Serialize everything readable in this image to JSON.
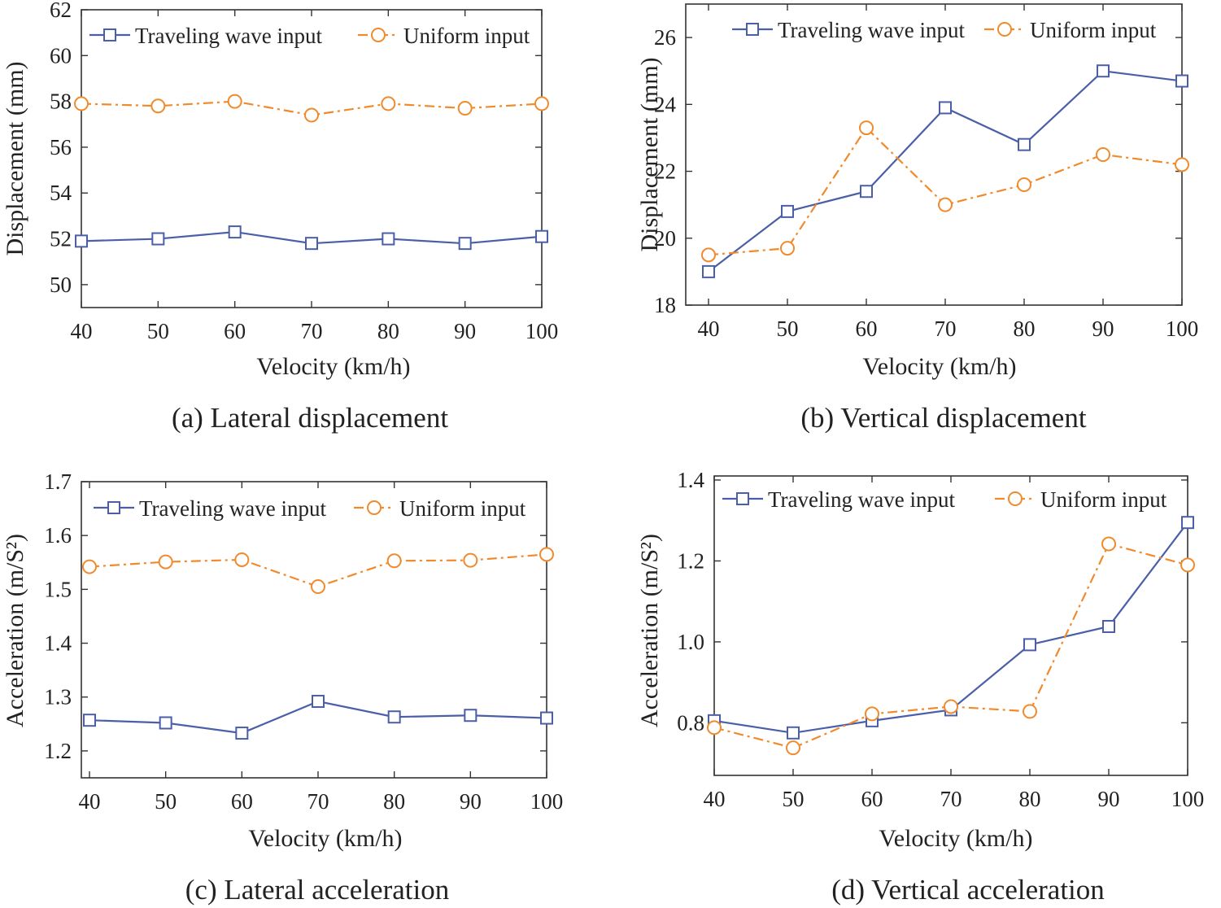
{
  "colors": {
    "traveling": "#4a5fa8",
    "uniform": "#f08a2c",
    "axis": "#333333"
  },
  "chart_data": [
    {
      "type": "line",
      "caption": "(a) Lateral displacement",
      "xlabel": "Velocity (km/h)",
      "ylabel": "Displacement (mm)",
      "categories": [
        40,
        50,
        60,
        70,
        80,
        90,
        100
      ],
      "xlim": [
        40,
        100
      ],
      "ylim": [
        49,
        62
      ],
      "yticks": [
        "50",
        "52",
        "54",
        "56",
        "58",
        "60",
        "62"
      ],
      "legend": [
        "Traveling wave input",
        "Uniform input"
      ],
      "series": [
        {
          "name": "Traveling wave input",
          "marker": "square",
          "values": [
            51.9,
            52.0,
            52.3,
            51.8,
            52.0,
            51.8,
            52.1
          ]
        },
        {
          "name": "Uniform input",
          "marker": "circle",
          "values": [
            57.9,
            57.8,
            58.0,
            57.4,
            57.9,
            57.7,
            57.9
          ]
        }
      ]
    },
    {
      "type": "line",
      "caption": "(b) Vertical displacement",
      "xlabel": "Velocity (km/h)",
      "ylabel": "Displacement (mm)",
      "categories": [
        40,
        50,
        60,
        70,
        80,
        90,
        100
      ],
      "xlim": [
        40,
        100
      ],
      "ylim": [
        18,
        27
      ],
      "yticks": [
        "18",
        "20",
        "22",
        "24",
        "26"
      ],
      "legend": [
        "Traveling wave input",
        "Uniform input"
      ],
      "series": [
        {
          "name": "Traveling wave input",
          "marker": "square",
          "values": [
            19.0,
            20.8,
            21.4,
            23.9,
            22.8,
            25.0,
            24.7
          ]
        },
        {
          "name": "Uniform input",
          "marker": "circle",
          "values": [
            19.5,
            19.7,
            23.3,
            21.0,
            21.6,
            22.5,
            22.2
          ]
        }
      ]
    },
    {
      "type": "line",
      "caption": "(c) Lateral acceleration",
      "xlabel": "Velocity (km/h)",
      "ylabel": "Acceleration (m/S²)",
      "categories": [
        40,
        50,
        60,
        70,
        80,
        90,
        100
      ],
      "xlim": [
        40,
        100
      ],
      "ylim": [
        1.15,
        1.7
      ],
      "yticks": [
        "1.2",
        "1.3",
        "1.4",
        "1.5",
        "1.6",
        "1.7"
      ],
      "legend": [
        "Traveling wave input",
        "Uniform input"
      ],
      "series": [
        {
          "name": "Traveling wave input",
          "marker": "square",
          "values": [
            1.257,
            1.252,
            1.233,
            1.292,
            1.263,
            1.266,
            1.261
          ]
        },
        {
          "name": "Uniform input",
          "marker": "circle",
          "values": [
            1.542,
            1.551,
            1.555,
            1.505,
            1.553,
            1.554,
            1.565
          ]
        }
      ]
    },
    {
      "type": "line",
      "caption": "(d) Vertical acceleration",
      "xlabel": "Velocity (km/h)",
      "ylabel": "Acceleration (m/S²)",
      "categories": [
        40,
        50,
        60,
        70,
        80,
        90,
        100
      ],
      "xlim": [
        40,
        100
      ],
      "ylim": [
        0.67,
        1.41
      ],
      "yticks": [
        "0.8",
        "1.0",
        "1.2",
        "1.4"
      ],
      "legend": [
        "Traveling wave input",
        "Uniform input"
      ],
      "series": [
        {
          "name": "Traveling wave input",
          "marker": "square",
          "values": [
            0.805,
            0.775,
            0.805,
            0.832,
            0.993,
            1.038,
            1.295
          ]
        },
        {
          "name": "Uniform input",
          "marker": "circle",
          "values": [
            0.788,
            0.738,
            0.822,
            0.84,
            0.828,
            1.242,
            1.19
          ]
        }
      ]
    }
  ]
}
